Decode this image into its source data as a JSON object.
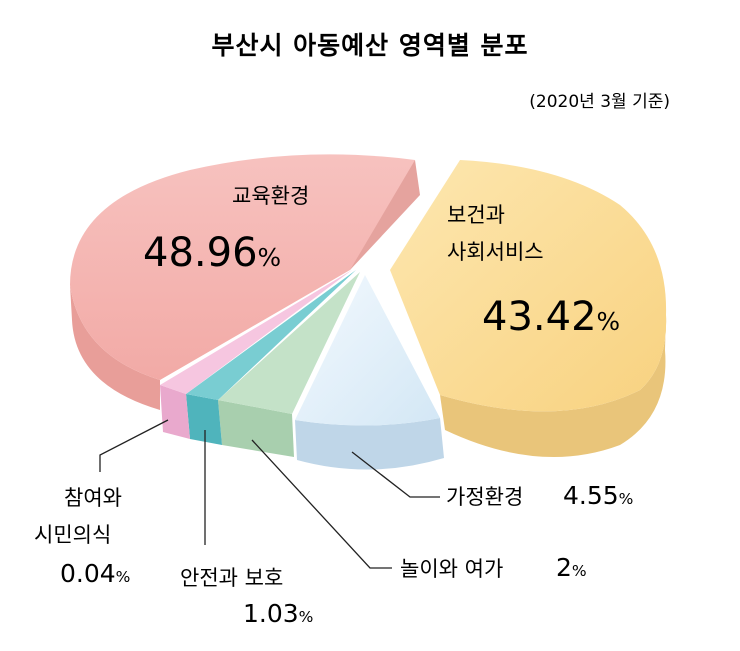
{
  "chart_data": {
    "type": "pie",
    "title": "부산시 아동예산 영역별 분포",
    "subtitle": "(2020년 3월 기준)",
    "unit": "%",
    "slices": [
      {
        "name": "교육환경",
        "value": 48.96,
        "value_text": "48.96",
        "color": "#f2aeaa"
      },
      {
        "name": "보건과 사회서비스",
        "value": 43.42,
        "value_text": "43.42",
        "color": "#fbd98f"
      },
      {
        "name": "가정환경",
        "value": 4.55,
        "value_text": "4.55",
        "color": "#d6e9f7"
      },
      {
        "name": "놀이와 여가",
        "value": 2,
        "value_text": "2",
        "color": "#bfe0c4"
      },
      {
        "name": "안전과 보호",
        "value": 1.03,
        "value_text": "1.03",
        "color": "#6ec9cf"
      },
      {
        "name": "참여와 시민의식",
        "value": 0.04,
        "value_text": "0.04",
        "color": "#f4bedc"
      }
    ]
  }
}
